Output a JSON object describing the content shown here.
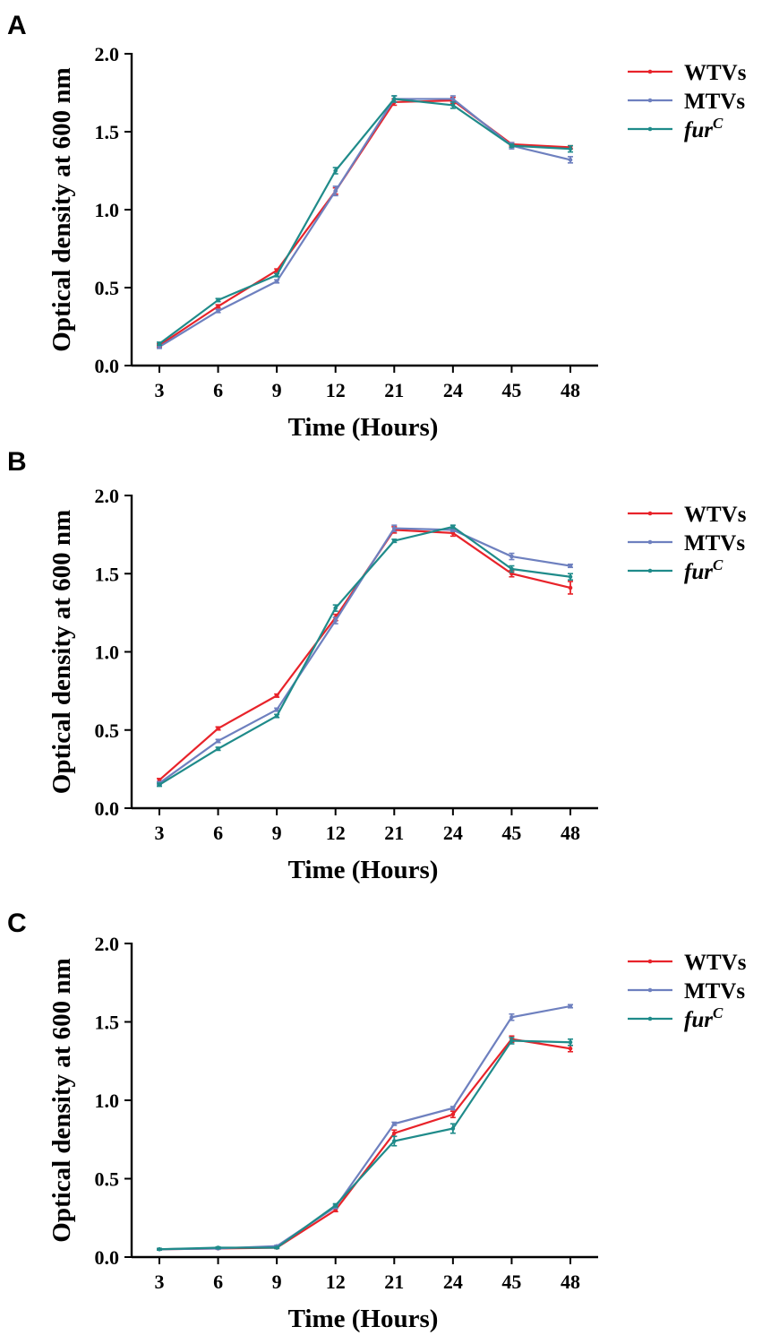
{
  "colors": {
    "WTVs": "#e8232a",
    "MTVs": "#6e80bf",
    "furC": "#1f8b8a"
  },
  "chart_data": [
    {
      "panel": "A",
      "type": "line",
      "xlabel": "Time (Hours)",
      "ylabel": "Optical density at 600 nm",
      "categories": [
        "3",
        "6",
        "9",
        "12",
        "21",
        "24",
        "45",
        "48"
      ],
      "ylim": [
        0,
        2.0
      ],
      "yticks": [
        "0.0",
        "0.5",
        "1.0",
        "1.5",
        "2.0"
      ],
      "legend": [
        {
          "key": "WTVs",
          "label": "WTVs",
          "italic": false
        },
        {
          "key": "MTVs",
          "label": "MTVs",
          "italic": false
        },
        {
          "key": "furC",
          "label": "fur",
          "sup": "C",
          "italic": true
        }
      ],
      "series": [
        {
          "key": "WTVs",
          "name": "WTVs",
          "values": [
            0.13,
            0.38,
            0.61,
            1.12,
            1.69,
            1.7,
            1.42,
            1.4
          ],
          "err": [
            0.01,
            0.01,
            0.01,
            0.02,
            0.02,
            0.02,
            0.01,
            0.01
          ]
        },
        {
          "key": "MTVs",
          "name": "MTVs",
          "values": [
            0.12,
            0.35,
            0.54,
            1.12,
            1.71,
            1.71,
            1.41,
            1.32
          ],
          "err": [
            0.01,
            0.01,
            0.01,
            0.03,
            0.02,
            0.02,
            0.02,
            0.02
          ]
        },
        {
          "key": "furC",
          "name": "furC",
          "values": [
            0.14,
            0.42,
            0.58,
            1.25,
            1.71,
            1.67,
            1.41,
            1.39
          ],
          "err": [
            0.01,
            0.01,
            0.01,
            0.02,
            0.02,
            0.02,
            0.01,
            0.02
          ]
        }
      ]
    },
    {
      "panel": "B",
      "type": "line",
      "xlabel": "Time (Hours)",
      "ylabel": "Optical density at 600 nm",
      "categories": [
        "3",
        "6",
        "9",
        "12",
        "21",
        "24",
        "45",
        "48"
      ],
      "ylim": [
        0,
        2.0
      ],
      "yticks": [
        "0.0",
        "0.5",
        "1.0",
        "1.5",
        "2.0"
      ],
      "legend": [
        {
          "key": "WTVs",
          "label": "WTVs",
          "italic": false
        },
        {
          "key": "MTVs",
          "label": "MTVs",
          "italic": false
        },
        {
          "key": "furC",
          "label": "fur",
          "sup": "C",
          "italic": true
        }
      ],
      "series": [
        {
          "key": "WTVs",
          "name": "WTVs",
          "values": [
            0.18,
            0.51,
            0.72,
            1.22,
            1.78,
            1.76,
            1.5,
            1.41
          ],
          "err": [
            0.01,
            0.01,
            0.01,
            0.02,
            0.02,
            0.02,
            0.02,
            0.04
          ]
        },
        {
          "key": "MTVs",
          "name": "MTVs",
          "values": [
            0.16,
            0.43,
            0.63,
            1.2,
            1.79,
            1.78,
            1.61,
            1.55
          ],
          "err": [
            0.01,
            0.01,
            0.01,
            0.02,
            0.02,
            0.01,
            0.02,
            0.01
          ]
        },
        {
          "key": "furC",
          "name": "furC",
          "values": [
            0.15,
            0.38,
            0.59,
            1.28,
            1.71,
            1.8,
            1.53,
            1.48
          ],
          "err": [
            0.01,
            0.01,
            0.01,
            0.02,
            0.01,
            0.01,
            0.02,
            0.02
          ]
        }
      ]
    },
    {
      "panel": "C",
      "type": "line",
      "xlabel": "Time (Hours)",
      "ylabel": "Optical density at 600 nm",
      "categories": [
        "3",
        "6",
        "9",
        "12",
        "21",
        "24",
        "45",
        "48"
      ],
      "ylim": [
        0,
        2.0
      ],
      "yticks": [
        "0.0",
        "0.5",
        "1.0",
        "1.5",
        "2.0"
      ],
      "legend": [
        {
          "key": "WTVs",
          "label": "WTVs",
          "italic": false
        },
        {
          "key": "MTVs",
          "label": "MTVs",
          "italic": false
        },
        {
          "key": "furC",
          "label": "fur",
          "sup": "C",
          "italic": true
        }
      ],
      "series": [
        {
          "key": "WTVs",
          "name": "WTVs",
          "values": [
            0.05,
            0.055,
            0.06,
            0.3,
            0.79,
            0.91,
            1.39,
            1.33
          ],
          "err": [
            0.005,
            0.005,
            0.005,
            0.01,
            0.02,
            0.02,
            0.02,
            0.02
          ]
        },
        {
          "key": "MTVs",
          "name": "MTVs",
          "values": [
            0.05,
            0.055,
            0.07,
            0.32,
            0.85,
            0.95,
            1.53,
            1.6
          ],
          "err": [
            0.005,
            0.005,
            0.005,
            0.01,
            0.01,
            0.01,
            0.02,
            0.01
          ]
        },
        {
          "key": "furC",
          "name": "furC",
          "values": [
            0.05,
            0.06,
            0.06,
            0.33,
            0.74,
            0.82,
            1.38,
            1.37
          ],
          "err": [
            0.005,
            0.005,
            0.005,
            0.01,
            0.03,
            0.03,
            0.02,
            0.02
          ]
        }
      ]
    }
  ]
}
